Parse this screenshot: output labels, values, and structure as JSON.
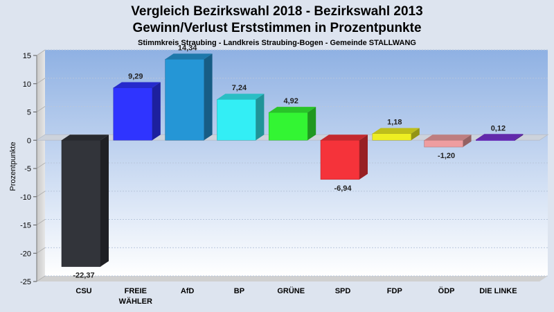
{
  "title_line1": "Vergleich Bezirkswahl 2018 - Bezirkswahl 2013",
  "title_line2": "Gewinn/Verlust Erststimmen in Prozentpunkte",
  "subtitle": "Stimmkreis Straubing - Landkreis Straubing-Bogen - Gemeinde STALLWANG",
  "chart_data": {
    "type": "bar",
    "title": "Vergleich Bezirkswahl 2018 - Bezirkswahl 2013 / Gewinn/Verlust Erststimmen in Prozentpunkte",
    "subtitle": "Stimmkreis Straubing - Landkreis Straubing-Bogen - Gemeinde STALLWANG",
    "xlabel": "",
    "ylabel": "Prozentpunkte",
    "ylim": [
      -25,
      15
    ],
    "yticks": [
      "15",
      "10",
      "5",
      "0",
      "-5",
      "-10",
      "-15",
      "-20",
      "-25"
    ],
    "ytick_values": [
      15,
      10,
      5,
      0,
      -5,
      -10,
      -15,
      -20,
      -25
    ],
    "grid": true,
    "categories": [
      {
        "line1": "CSU",
        "line2": ""
      },
      {
        "line1": "FREIE",
        "line2": "WÄHLER"
      },
      {
        "line1": "AfD",
        "line2": ""
      },
      {
        "line1": "BP",
        "line2": ""
      },
      {
        "line1": "GRÜNE",
        "line2": ""
      },
      {
        "line1": "SPD",
        "line2": ""
      },
      {
        "line1": "FDP",
        "line2": ""
      },
      {
        "line1": "ÖDP",
        "line2": ""
      },
      {
        "line1": "DIE LINKE",
        "line2": ""
      }
    ],
    "values": [
      -22.37,
      9.29,
      14.34,
      7.24,
      4.92,
      -6.94,
      1.18,
      -1.2,
      0.12
    ],
    "value_labels": [
      "-22,37",
      "9,29",
      "14,34",
      "7,24",
      "4,92",
      "-6,94",
      "1,18",
      "-1,20",
      "0,12"
    ],
    "colors": [
      "#32343a",
      "#2f34ff",
      "#2596d6",
      "#33eef5",
      "#33f533",
      "#f5333a",
      "#eeee22",
      "#ee9da0",
      "#7a33d5"
    ]
  }
}
